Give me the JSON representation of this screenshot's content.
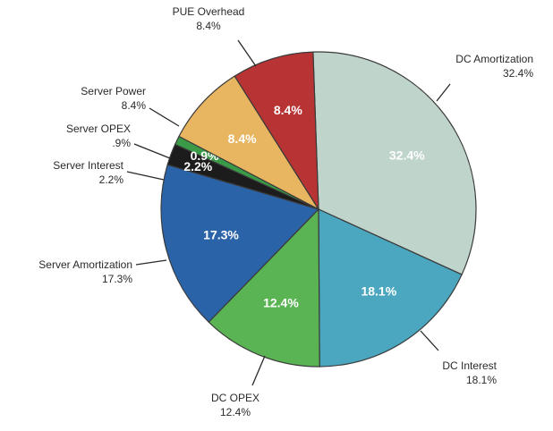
{
  "chart_data": {
    "type": "pie",
    "title": "",
    "slices": [
      {
        "name": "DC Amortization",
        "value": 32.4,
        "label": "32.4%",
        "ext_label": "32.4%",
        "color": "#bfd4cb",
        "label_color": "#ffffff"
      },
      {
        "name": "DC Interest",
        "value": 18.1,
        "label": "18.1%",
        "ext_label": "18.1%",
        "color": "#4aa7bf",
        "label_color": "#ffffff"
      },
      {
        "name": "DC OPEX",
        "value": 12.4,
        "label": "12.4%",
        "ext_label": "12.4%",
        "color": "#5bb454",
        "label_color": "#ffffff"
      },
      {
        "name": "Server Amortization",
        "value": 17.3,
        "label": "17.3%",
        "ext_label": "17.3%",
        "color": "#2b63a8",
        "label_color": "#ffffff"
      },
      {
        "name": "Server Interest",
        "value": 2.2,
        "label": "2.2%",
        "ext_label": "2.2%",
        "color": "#1c1c1c",
        "label_color": "#ffffff"
      },
      {
        "name": "Server OPEX",
        "value": 0.9,
        "label": "0.9%",
        "ext_label": ".9%",
        "color": "#3a9a48",
        "label_color": "#ffffff"
      },
      {
        "name": "Server Power",
        "value": 8.4,
        "label": "8.4%",
        "ext_label": "8.4%",
        "color": "#e8b560",
        "label_color": "#ffffff"
      },
      {
        "name": "PUE Overhead",
        "value": 8.4,
        "label": "8.4%",
        "ext_label": "8.4%",
        "color": "#b83333",
        "label_color": "#ffffff"
      }
    ]
  }
}
